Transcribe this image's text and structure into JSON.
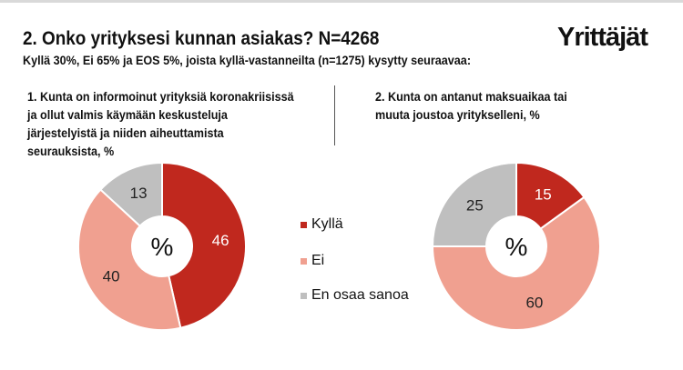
{
  "header": {
    "title": "2. Onko yrityksesi kunnan asiakas? N=4268",
    "subtitle": "Kyllä 30%, Ei 65% ja EOS 5%, joista kyllä-vastanneilta (n=1275) kysytty seuraavaa:",
    "logo": "Yrittäjät"
  },
  "colors": {
    "Kyllä": "#c0281e",
    "Ei": "#f0a090",
    "En osaa sanoa": "#bfbfbf"
  },
  "legend": [
    "Kyllä",
    "Ei",
    "En osaa sanoa"
  ],
  "chart_data": [
    {
      "type": "pie",
      "variant": "donut",
      "title": "1. Kunta on informoinut yrityksiä koronakriisissä ja ollut valmis käymään keskusteluja järjestelyistä ja niiden aiheuttamista seurauksista, %",
      "center_label": "%",
      "categories": [
        "Kyllä",
        "Ei",
        "En osaa sanoa"
      ],
      "values": [
        46,
        40,
        13
      ]
    },
    {
      "type": "pie",
      "variant": "donut",
      "title": "2. Kunta on antanut maksuaikaa tai muuta joustoa yritykselleni, %",
      "center_label": "%",
      "categories": [
        "Kyllä",
        "Ei",
        "En osaa sanoa"
      ],
      "values": [
        15,
        60,
        25
      ]
    }
  ]
}
